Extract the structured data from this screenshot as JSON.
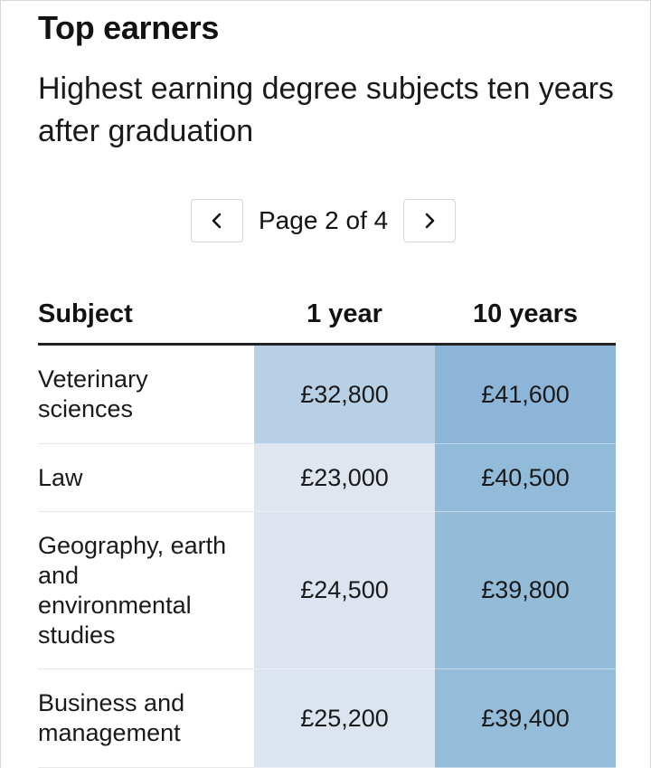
{
  "header": {
    "title": "Top earners",
    "subtitle": "Highest earning degree subjects ten years after graduation"
  },
  "pagination": {
    "label": "Page 2 of 4",
    "prev_icon": "chevron-left-icon",
    "next_icon": "chevron-right-icon"
  },
  "table": {
    "columns": [
      "Subject",
      "1 year",
      "10 years"
    ],
    "rows": [
      {
        "subject": "Veterinary sciences",
        "one_year": "£32,800",
        "ten_years": "£41,600",
        "one_year_color": "#b8d0e6",
        "ten_years_color": "#8db5d8"
      },
      {
        "subject": "Law",
        "one_year": "£23,000",
        "ten_years": "£40,500",
        "one_year_color": "#dfe6f0",
        "ten_years_color": "#92bad9"
      },
      {
        "subject": "Geography, earth and environmental studies",
        "one_year": "£24,500",
        "ten_years": "£39,800",
        "one_year_color": "#dde4ef",
        "ten_years_color": "#94bcd9"
      },
      {
        "subject": "Business and management",
        "one_year": "£25,200",
        "ten_years": "£39,400",
        "one_year_color": "#dce4ef",
        "ten_years_color": "#95bcd9"
      },
      {
        "subject": "",
        "one_year": "",
        "ten_years": "",
        "one_year_color": "#dce4ef",
        "ten_years_color": "#96bdda"
      }
    ]
  }
}
